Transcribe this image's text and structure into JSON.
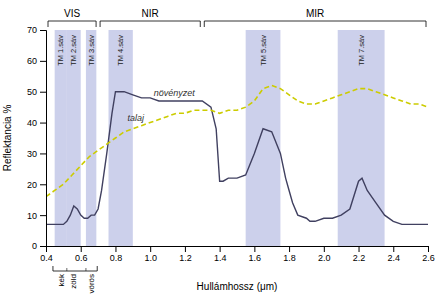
{
  "chart_data": {
    "type": "line",
    "xlabel": "Hullámhossz (μm)",
    "ylabel": "Reflektancia %",
    "xlim": [
      0.4,
      2.6
    ],
    "ylim": [
      0,
      70
    ],
    "xticks": [
      0.4,
      0.6,
      0.8,
      {
        "value": 1,
        "label": "1.0"
      },
      1.2,
      1.4,
      1.6,
      1.8,
      {
        "value": 2,
        "label": "2.0"
      },
      2.2,
      2.4,
      2.6
    ],
    "yticks": [
      0,
      10,
      20,
      30,
      40,
      50,
      60,
      70
    ],
    "grid": false,
    "series": [
      {
        "color": "#404060",
        "line_style": "solid",
        "x": [
          0.4,
          0.45,
          0.48,
          0.5,
          0.52,
          0.54,
          0.56,
          0.58,
          0.6,
          0.62,
          0.64,
          0.66,
          0.68,
          0.7,
          0.72,
          0.75,
          0.78,
          0.8,
          0.85,
          0.9,
          0.95,
          1.0,
          1.05,
          1.1,
          1.15,
          1.2,
          1.25,
          1.3,
          1.35,
          1.38,
          1.4,
          1.42,
          1.45,
          1.5,
          1.55,
          1.6,
          1.65,
          1.7,
          1.75,
          1.78,
          1.8,
          1.82,
          1.85,
          1.9,
          1.92,
          1.95,
          2.0,
          2.05,
          2.1,
          2.15,
          2.2,
          2.22,
          2.25,
          2.3,
          2.35,
          2.4,
          2.45,
          2.5,
          2.55,
          2.6
        ],
        "values": [
          7,
          7,
          7,
          7,
          8,
          10,
          13,
          12,
          10,
          9,
          9,
          10,
          10,
          12,
          18,
          30,
          43,
          50,
          50,
          49,
          48,
          48,
          47,
          47,
          47,
          47,
          47,
          47,
          45,
          38,
          21,
          21,
          22,
          22,
          23,
          30,
          38,
          37,
          30,
          22,
          18,
          14,
          10,
          9,
          8,
          8,
          9,
          9,
          10,
          12,
          21,
          22,
          18,
          14,
          10,
          8,
          7,
          7,
          7,
          7
        ]
      },
      {
        "color": "#cccc00",
        "line_style": "dashed",
        "x": [
          0.4,
          0.45,
          0.5,
          0.55,
          0.6,
          0.65,
          0.7,
          0.75,
          0.8,
          0.85,
          0.9,
          0.95,
          1.0,
          1.05,
          1.1,
          1.15,
          1.2,
          1.25,
          1.3,
          1.35,
          1.4,
          1.45,
          1.5,
          1.55,
          1.6,
          1.65,
          1.7,
          1.75,
          1.8,
          1.85,
          1.9,
          1.95,
          2.0,
          2.05,
          2.1,
          2.15,
          2.2,
          2.25,
          2.3,
          2.35,
          2.4,
          2.45,
          2.5,
          2.55,
          2.6
        ],
        "values": [
          16,
          18,
          20,
          23,
          26,
          29,
          31,
          33,
          35,
          37,
          38,
          39,
          40,
          41,
          42,
          43,
          43,
          44,
          44,
          44,
          43,
          44,
          44,
          45,
          47,
          51,
          52,
          51,
          49,
          47,
          46,
          46,
          47,
          48,
          49,
          50,
          51,
          51,
          50,
          49,
          48,
          47,
          46,
          46,
          45
        ]
      }
    ],
    "bands": [
      {
        "xmin": 0.45,
        "xmax": 0.52,
        "label": "TM 1.sáv",
        "color": "#aab0dd"
      },
      {
        "xmin": 0.52,
        "xmax": 0.6,
        "label": "TM 2.sáv",
        "color": "#aab0dd"
      },
      {
        "xmin": 0.63,
        "xmax": 0.69,
        "label": "TM 3.sáv",
        "color": "#aab0dd"
      },
      {
        "xmin": 0.76,
        "xmax": 0.9,
        "label": "TM 4.sáv",
        "color": "#aab0dd"
      },
      {
        "xmin": 1.55,
        "xmax": 1.75,
        "label": "TM 5.sáv",
        "color": "#aab0dd"
      },
      {
        "xmin": 2.08,
        "xmax": 2.35,
        "label": "TM 7.sáv",
        "color": "#aab0dd"
      }
    ],
    "regions": [
      {
        "label": "VIS",
        "xmin": 0.4,
        "xmax": 0.7
      },
      {
        "label": "NIR",
        "xmin": 0.7,
        "xmax": 1.3
      },
      {
        "label": "MIR",
        "xmin": 1.3,
        "xmax": 2.6
      }
    ],
    "annotations": [
      {
        "text": "növényzet",
        "x": 1.02,
        "y": 48.5
      },
      {
        "text": "talaj",
        "x": 0.87,
        "y": 40.5
      }
    ],
    "color_bracket": {
      "xmin": 0.44,
      "xmax": 0.695,
      "dividers": [
        0.52,
        0.63
      ],
      "labels": [
        {
          "text": "kék",
          "x": 0.485
        },
        {
          "text": "zöld",
          "x": 0.555
        },
        {
          "text": "vörös",
          "x": 0.66
        }
      ]
    }
  }
}
